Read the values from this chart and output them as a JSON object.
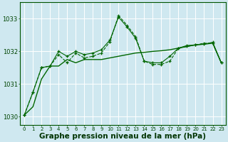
{
  "background_color": "#cfe8f0",
  "plot_bg_color": "#cfe8f0",
  "grid_color": "#ffffff",
  "line_color": "#006600",
  "xlabel": "Graphe pression niveau de la mer (hPa)",
  "xlabel_fontsize": 7.5,
  "xlabel_color": "#003300",
  "xlim": [
    -0.5,
    23.5
  ],
  "ylim": [
    1029.75,
    1033.5
  ],
  "yticks": [
    1030,
    1031,
    1032,
    1033
  ],
  "xticks": [
    0,
    1,
    2,
    3,
    4,
    5,
    6,
    7,
    8,
    9,
    10,
    11,
    12,
    13,
    14,
    15,
    16,
    17,
    18,
    19,
    20,
    21,
    22,
    23
  ],
  "tick_fontsize": 5.0,
  "series1_x": [
    0,
    1,
    2,
    3,
    4,
    5,
    6,
    7,
    8,
    9,
    10,
    11,
    12,
    13,
    14,
    15,
    16,
    17,
    18,
    19,
    20,
    21,
    22,
    23
  ],
  "series1_y": [
    1030.05,
    1030.75,
    1031.5,
    1031.55,
    1031.9,
    1031.65,
    1031.95,
    1031.8,
    1031.85,
    1031.95,
    1032.3,
    1033.1,
    1032.8,
    1032.45,
    1031.7,
    1031.6,
    1031.6,
    1031.7,
    1032.1,
    1032.15,
    1032.2,
    1032.25,
    1032.25,
    1031.65
  ],
  "series2_x": [
    0,
    1,
    2,
    3,
    4,
    5,
    6,
    7,
    8,
    9,
    10,
    11,
    12,
    13,
    14,
    15,
    16,
    17,
    18,
    19,
    20,
    21,
    22,
    23
  ],
  "series2_y": [
    1030.05,
    1030.75,
    1031.5,
    1031.55,
    1032.0,
    1031.85,
    1032.0,
    1031.9,
    1031.95,
    1032.05,
    1032.35,
    1033.05,
    1032.75,
    1032.4,
    1031.7,
    1031.65,
    1031.65,
    1031.85,
    1032.1,
    1032.18,
    1032.2,
    1032.22,
    1032.28,
    1031.65
  ],
  "series3_x": [
    0,
    1,
    2,
    3,
    4,
    5,
    6,
    7,
    8,
    9,
    10,
    11,
    12,
    13,
    14,
    15,
    16,
    17,
    18,
    19,
    20,
    21,
    22,
    23
  ],
  "series3_y": [
    1030.05,
    1030.3,
    1031.15,
    1031.55,
    1031.55,
    1031.75,
    1031.65,
    1031.75,
    1031.75,
    1031.75,
    1031.8,
    1031.85,
    1031.9,
    1031.95,
    1031.97,
    1032.0,
    1032.02,
    1032.05,
    1032.1,
    1032.15,
    1032.2,
    1032.22,
    1032.25,
    1031.65
  ]
}
